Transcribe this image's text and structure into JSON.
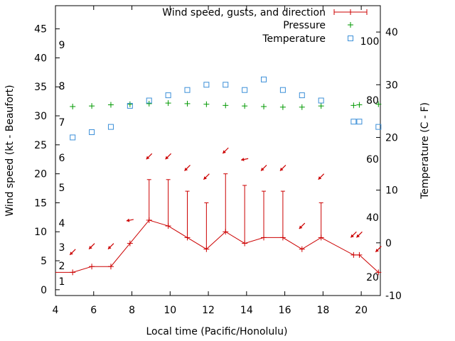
{
  "chart_data": {
    "type": "line",
    "title": "",
    "xlabel": "Local time (Pacific/Honolulu)",
    "ylabel": "Wind speed (kt - Beaufort)",
    "y2label": "Temperature (C - F)",
    "xlim": [
      4,
      21
    ],
    "ylim": [
      -1,
      49
    ],
    "y2lim": [
      -10,
      45
    ],
    "x_ticks": [
      "4",
      "6",
      "8",
      "10",
      "12",
      "14",
      "16",
      "18",
      "20"
    ],
    "y_ticks": [
      "0",
      "5",
      "10",
      "15",
      "20",
      "25",
      "30",
      "35",
      "40",
      "45"
    ],
    "y2_ticks": [
      "-10",
      "0",
      "10",
      "20",
      "30",
      "40"
    ],
    "beaufort_labels": [
      "1",
      "2",
      "3",
      "4",
      "5",
      "6",
      "7",
      "8",
      "9"
    ],
    "fahrenheit_labels": [
      "20",
      "40",
      "60",
      "80",
      "100"
    ],
    "legend": {
      "wind": "Wind speed, gusts, and direction",
      "pressure": "Pressure",
      "temperature": "Temperature"
    },
    "colors": {
      "wind": "#cc0000",
      "pressure": "#009900",
      "temperature": "#3b8fd8"
    },
    "wind": {
      "x": [
        4,
        4.9,
        5.9,
        6.9,
        7.9,
        8.9,
        9.9,
        10.9,
        11.9,
        12.9,
        13.9,
        14.9,
        15.9,
        16.9,
        17.9,
        19.6,
        19.9,
        20.9
      ],
      "speed": [
        3,
        3,
        4,
        4,
        8,
        12,
        11,
        9,
        7,
        10,
        8,
        9,
        9,
        7,
        9,
        6,
        6,
        3
      ],
      "gust": [
        null,
        null,
        null,
        null,
        null,
        19,
        19,
        17,
        15,
        20,
        18,
        17,
        17,
        null,
        15,
        null,
        null,
        null
      ]
    },
    "wind_arrows": [
      {
        "x": 4.9,
        "dir": "sw"
      },
      {
        "x": 5.9,
        "dir": "sw"
      },
      {
        "x": 6.9,
        "dir": "sw"
      },
      {
        "x": 7.9,
        "dir": "w"
      },
      {
        "x": 8.9,
        "dir": "sw"
      },
      {
        "x": 9.9,
        "dir": "sw"
      },
      {
        "x": 10.9,
        "dir": "sw"
      },
      {
        "x": 11.9,
        "dir": "sw"
      },
      {
        "x": 12.9,
        "dir": "sw"
      },
      {
        "x": 13.9,
        "dir": "w"
      },
      {
        "x": 14.9,
        "dir": "sw"
      },
      {
        "x": 15.9,
        "dir": "sw"
      },
      {
        "x": 16.9,
        "dir": "sw"
      },
      {
        "x": 17.9,
        "dir": "sw"
      },
      {
        "x": 19.6,
        "dir": "sw"
      },
      {
        "x": 19.9,
        "dir": "sw"
      },
      {
        "x": 20.9,
        "dir": "sw"
      }
    ],
    "wind_arrow_y": [
      6.5,
      7.5,
      7.5,
      12,
      23,
      23,
      21,
      19.5,
      24,
      22.5,
      21,
      21,
      11,
      19.5,
      9.5,
      9.5,
      7
    ],
    "pressure": {
      "x": [
        4.9,
        5.9,
        6.9,
        7.9,
        8.9,
        9.9,
        10.9,
        11.9,
        12.9,
        13.9,
        14.9,
        15.9,
        16.9,
        17.9,
        19.6,
        19.9,
        20.9
      ],
      "y": [
        31.6,
        31.7,
        31.9,
        32.0,
        32.1,
        32.2,
        32.1,
        32.0,
        31.8,
        31.7,
        31.6,
        31.5,
        31.5,
        31.7,
        31.8,
        31.9,
        32.0
      ]
    },
    "temperature": {
      "x": [
        4.9,
        5.9,
        6.9,
        7.9,
        8.9,
        9.9,
        10.9,
        11.9,
        12.9,
        13.9,
        14.9,
        15.9,
        16.9,
        17.9,
        19.6,
        19.9,
        20.9
      ],
      "y": [
        20,
        21,
        22,
        26,
        27,
        28,
        29,
        30,
        30,
        29,
        31,
        29,
        28,
        27,
        23,
        23,
        22
      ]
    }
  }
}
